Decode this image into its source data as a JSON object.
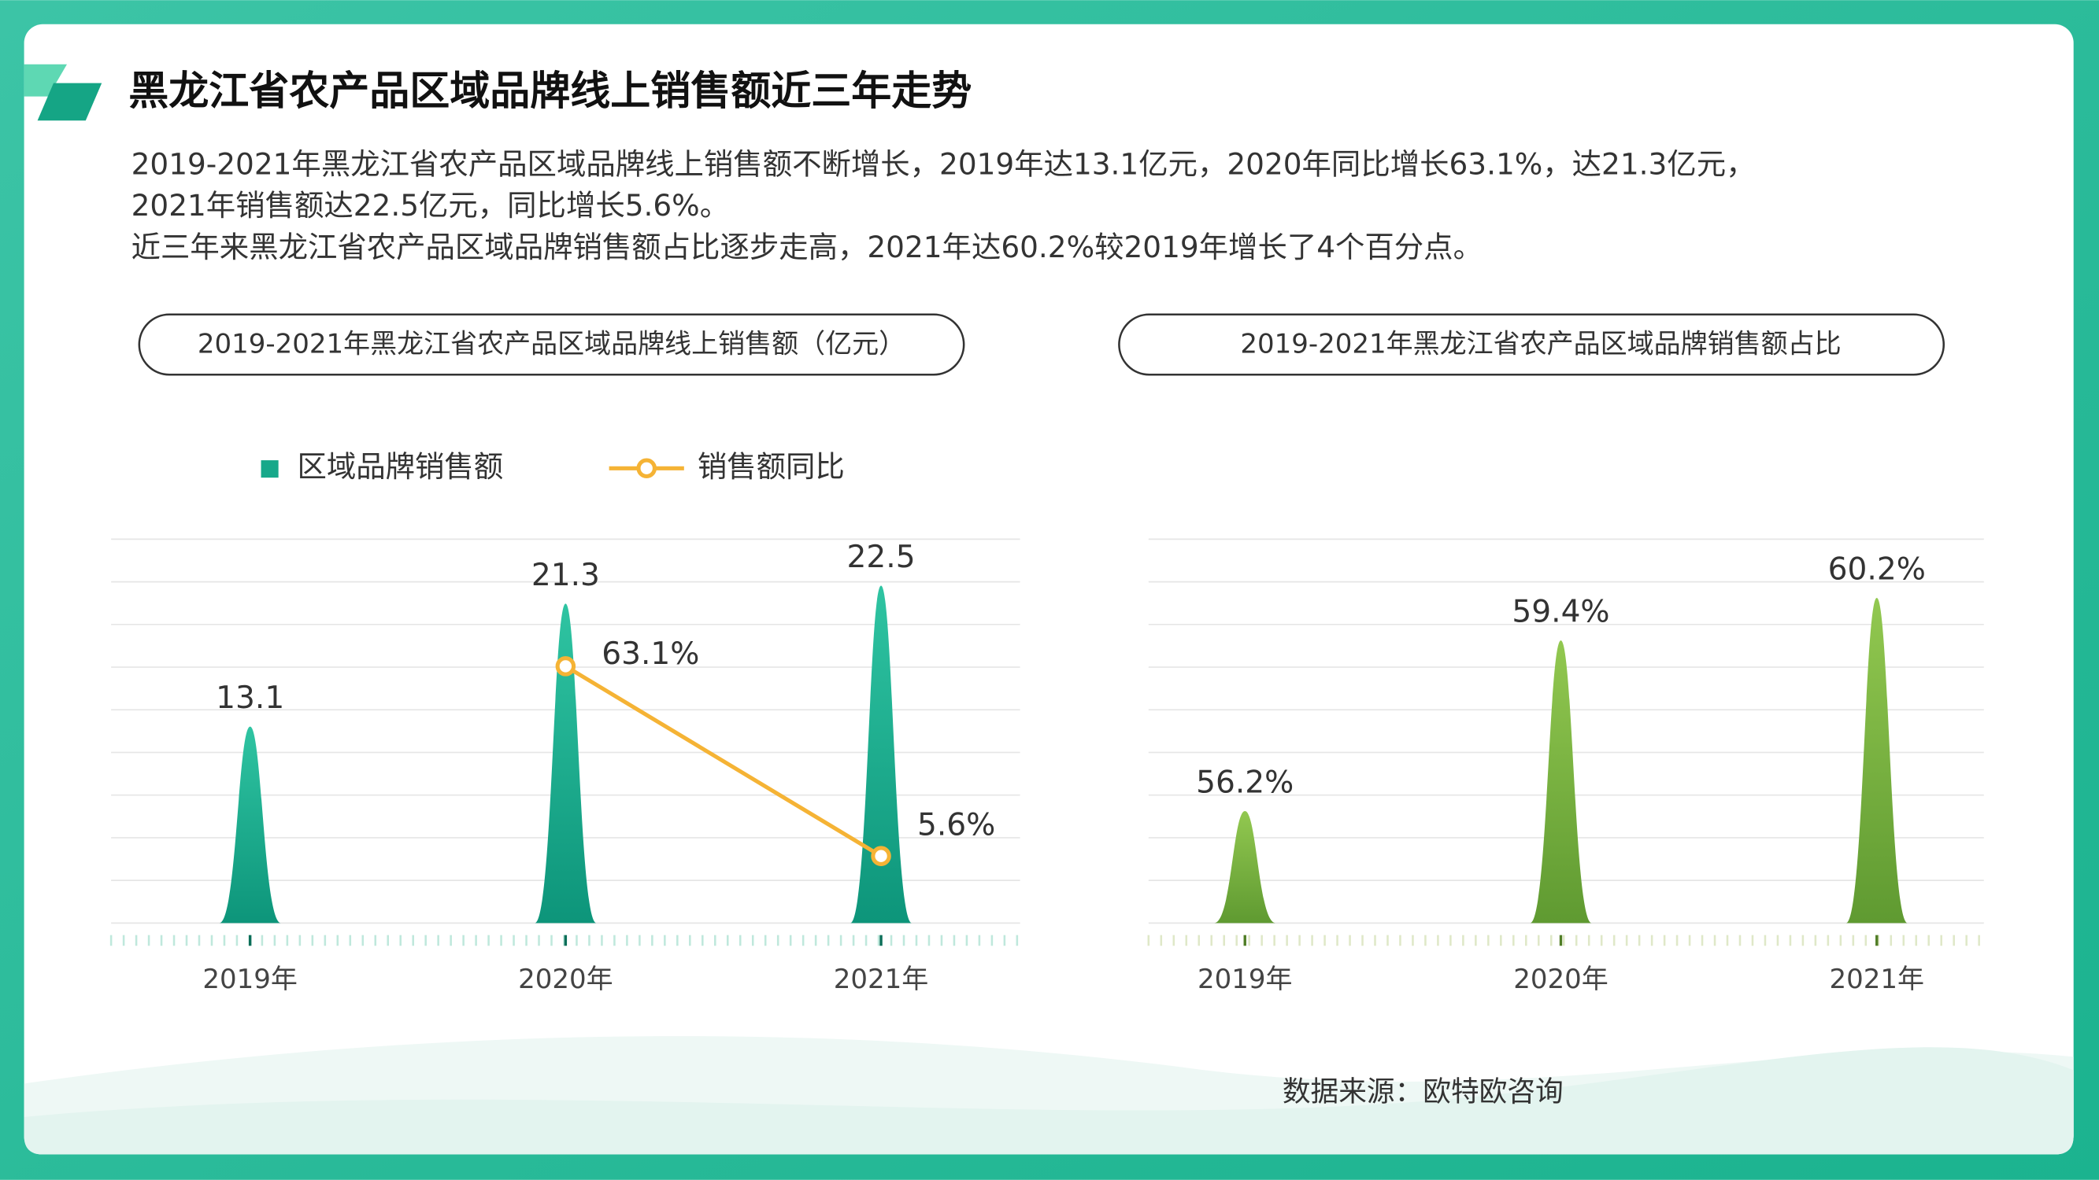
{
  "header": {
    "title": "黑龙江省农产品区域品牌线上销售额近三年走势"
  },
  "description": [
    "2019-2021年黑龙江省农产品区域品牌线上销售额不断增长，2019年达13.1亿元，2020年同比增长63.1%，达21.3亿元，",
    "2021年销售额达22.5亿元，同比增长5.6%。",
    "近三年来黑龙江省农产品区域品牌销售额占比逐步走高，2021年达60.2%较2019年增长了4个百分点。"
  ],
  "chart_data": [
    {
      "type": "bar",
      "title": "2019-2021年黑龙江省农产品区域品牌线上销售额（亿元）",
      "categories": [
        "2019年",
        "2020年",
        "2021年"
      ],
      "series": [
        {
          "name": "区域品牌销售额",
          "color": "#17a88a",
          "values": [
            13.1,
            21.3,
            22.5
          ]
        },
        {
          "name": "销售额同比",
          "type": "line",
          "axis": "y2",
          "color": "#f5b335",
          "values": [
            null,
            63.1,
            5.6
          ],
          "value_labels": [
            null,
            "63.1%",
            "5.6%"
          ]
        }
      ],
      "ylim": [
        0,
        25.6
      ],
      "y2lim": [
        -14.7,
        101.6
      ],
      "grid": true
    },
    {
      "type": "bar",
      "title": "2019-2021年黑龙江省农产品区域品牌销售额占比",
      "categories": [
        "2019年",
        "2020年",
        "2021年"
      ],
      "series": [
        {
          "color": "#78b043",
          "values": [
            56.2,
            59.4,
            60.2
          ],
          "value_labels": [
            "56.2%",
            "59.4%",
            "60.2%"
          ]
        }
      ],
      "ylim": [
        54.1,
        61.3
      ],
      "grid": true
    }
  ],
  "footer": {
    "source": "数据来源：欧特欧咨询"
  }
}
